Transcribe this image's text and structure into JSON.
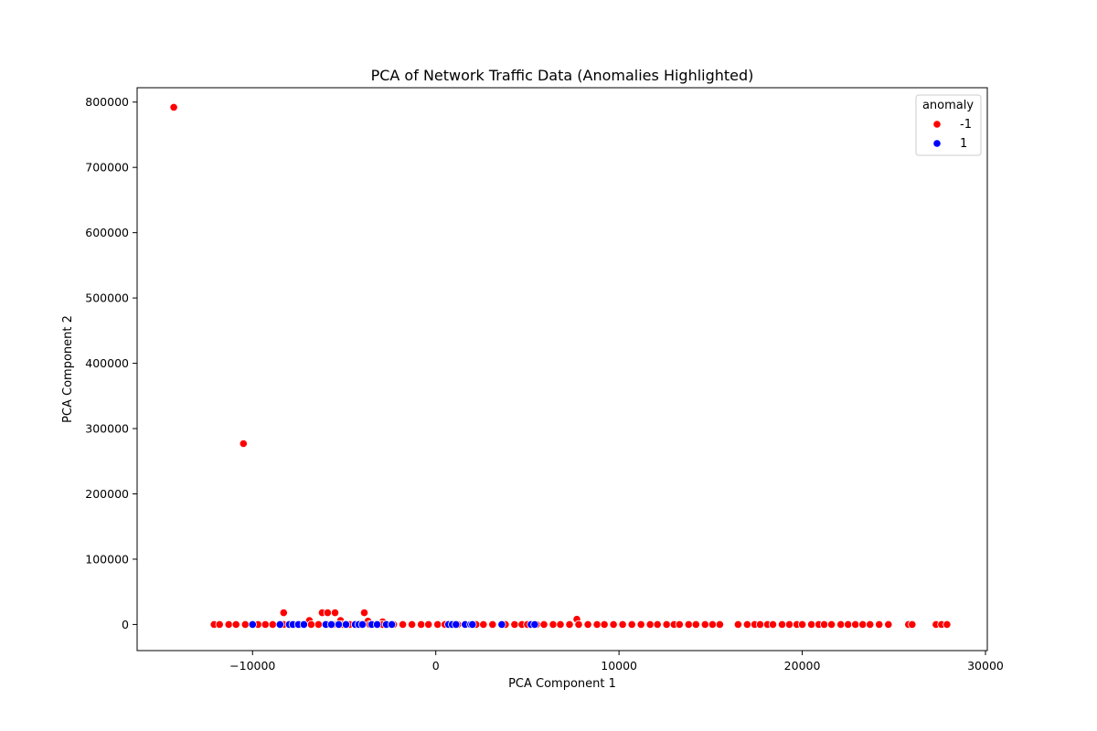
{
  "chart_data": {
    "type": "scatter",
    "title": "PCA of Network Traffic Data (Anomalies Highlighted)",
    "xlabel": "PCA Component 1",
    "ylabel": "PCA Component 2",
    "xlim": [
      -16300,
      30100
    ],
    "ylim": [
      -40000,
      822000
    ],
    "x_ticks": [
      -10000,
      0,
      10000,
      20000,
      30000
    ],
    "x_tick_labels": [
      "−10000",
      "0",
      "10000",
      "20000",
      "30000"
    ],
    "y_ticks": [
      0,
      100000,
      200000,
      300000,
      400000,
      500000,
      600000,
      700000,
      800000
    ],
    "y_tick_labels": [
      "0",
      "100000",
      "200000",
      "300000",
      "400000",
      "500000",
      "600000",
      "700000",
      "800000"
    ],
    "grid": false,
    "legend": {
      "title": "anomaly",
      "position": "top-right",
      "entries": [
        {
          "label": "-1",
          "color": "#ff0000"
        },
        {
          "label": "1",
          "color": "#0000ff"
        }
      ]
    },
    "series": [
      {
        "name": "-1",
        "color": "#ff0000",
        "points": [
          [
            -14300,
            792000
          ],
          [
            -10500,
            277000
          ],
          [
            -8300,
            18000
          ],
          [
            -6200,
            18000
          ],
          [
            -5900,
            18000
          ],
          [
            -5500,
            18000
          ],
          [
            -3900,
            18000
          ],
          [
            7700,
            8000
          ],
          [
            -6900,
            6000
          ],
          [
            -5200,
            6000
          ],
          [
            -3700,
            5000
          ],
          [
            -2900,
            4000
          ],
          [
            -12100,
            0
          ],
          [
            -11800,
            0
          ],
          [
            -11300,
            0
          ],
          [
            -10900,
            0
          ],
          [
            -10400,
            0
          ],
          [
            -9700,
            0
          ],
          [
            -9300,
            0
          ],
          [
            -8900,
            0
          ],
          [
            -8300,
            0
          ],
          [
            -7900,
            0
          ],
          [
            -7400,
            0
          ],
          [
            -6800,
            0
          ],
          [
            -6400,
            0
          ],
          [
            -5900,
            0
          ],
          [
            -5600,
            0
          ],
          [
            -5100,
            0
          ],
          [
            -4700,
            0
          ],
          [
            -4100,
            0
          ],
          [
            -3600,
            0
          ],
          [
            -3100,
            0
          ],
          [
            -2900,
            0
          ],
          [
            -2300,
            0
          ],
          [
            -1800,
            0
          ],
          [
            -1300,
            0
          ],
          [
            -800,
            0
          ],
          [
            -400,
            0
          ],
          [
            100,
            0
          ],
          [
            500,
            0
          ],
          [
            1200,
            0
          ],
          [
            1600,
            0
          ],
          [
            2200,
            0
          ],
          [
            2600,
            0
          ],
          [
            3100,
            0
          ],
          [
            3800,
            0
          ],
          [
            4300,
            0
          ],
          [
            4700,
            0
          ],
          [
            5000,
            0
          ],
          [
            5500,
            0
          ],
          [
            5900,
            0
          ],
          [
            6400,
            0
          ],
          [
            6800,
            0
          ],
          [
            7300,
            0
          ],
          [
            7800,
            0
          ],
          [
            8300,
            0
          ],
          [
            8800,
            0
          ],
          [
            9200,
            0
          ],
          [
            9700,
            0
          ],
          [
            10200,
            0
          ],
          [
            10700,
            0
          ],
          [
            11200,
            0
          ],
          [
            11700,
            0
          ],
          [
            12100,
            0
          ],
          [
            12600,
            0
          ],
          [
            13000,
            0
          ],
          [
            13300,
            0
          ],
          [
            13800,
            0
          ],
          [
            14200,
            0
          ],
          [
            14700,
            0
          ],
          [
            15100,
            0
          ],
          [
            15500,
            0
          ],
          [
            16500,
            0
          ],
          [
            17000,
            0
          ],
          [
            17400,
            0
          ],
          [
            17700,
            0
          ],
          [
            18100,
            0
          ],
          [
            18400,
            0
          ],
          [
            18900,
            0
          ],
          [
            19300,
            0
          ],
          [
            19700,
            0
          ],
          [
            20000,
            0
          ],
          [
            20500,
            0
          ],
          [
            20900,
            0
          ],
          [
            21200,
            0
          ],
          [
            21600,
            0
          ],
          [
            22100,
            0
          ],
          [
            22500,
            0
          ],
          [
            22900,
            0
          ],
          [
            23300,
            0
          ],
          [
            23700,
            0
          ],
          [
            24200,
            0
          ],
          [
            24700,
            0
          ],
          [
            25800,
            0
          ],
          [
            26000,
            0
          ],
          [
            27300,
            0
          ],
          [
            27600,
            0
          ],
          [
            27900,
            0
          ]
        ]
      },
      {
        "name": "1",
        "color": "#0000ff",
        "points": [
          [
            -10000,
            0
          ],
          [
            -8500,
            0
          ],
          [
            -8000,
            0
          ],
          [
            -7800,
            0
          ],
          [
            -7500,
            0
          ],
          [
            -7200,
            0
          ],
          [
            -6000,
            0
          ],
          [
            -5700,
            0
          ],
          [
            -5300,
            0
          ],
          [
            -4900,
            0
          ],
          [
            -4400,
            0
          ],
          [
            -4200,
            0
          ],
          [
            -4000,
            0
          ],
          [
            -3500,
            0
          ],
          [
            -3200,
            0
          ],
          [
            -2700,
            0
          ],
          [
            -2400,
            0
          ],
          [
            700,
            0
          ],
          [
            900,
            0
          ],
          [
            1100,
            0
          ],
          [
            1600,
            0
          ],
          [
            1900,
            0
          ],
          [
            2000,
            0
          ],
          [
            3600,
            0
          ],
          [
            5200,
            0
          ],
          [
            5400,
            0
          ]
        ]
      }
    ]
  }
}
